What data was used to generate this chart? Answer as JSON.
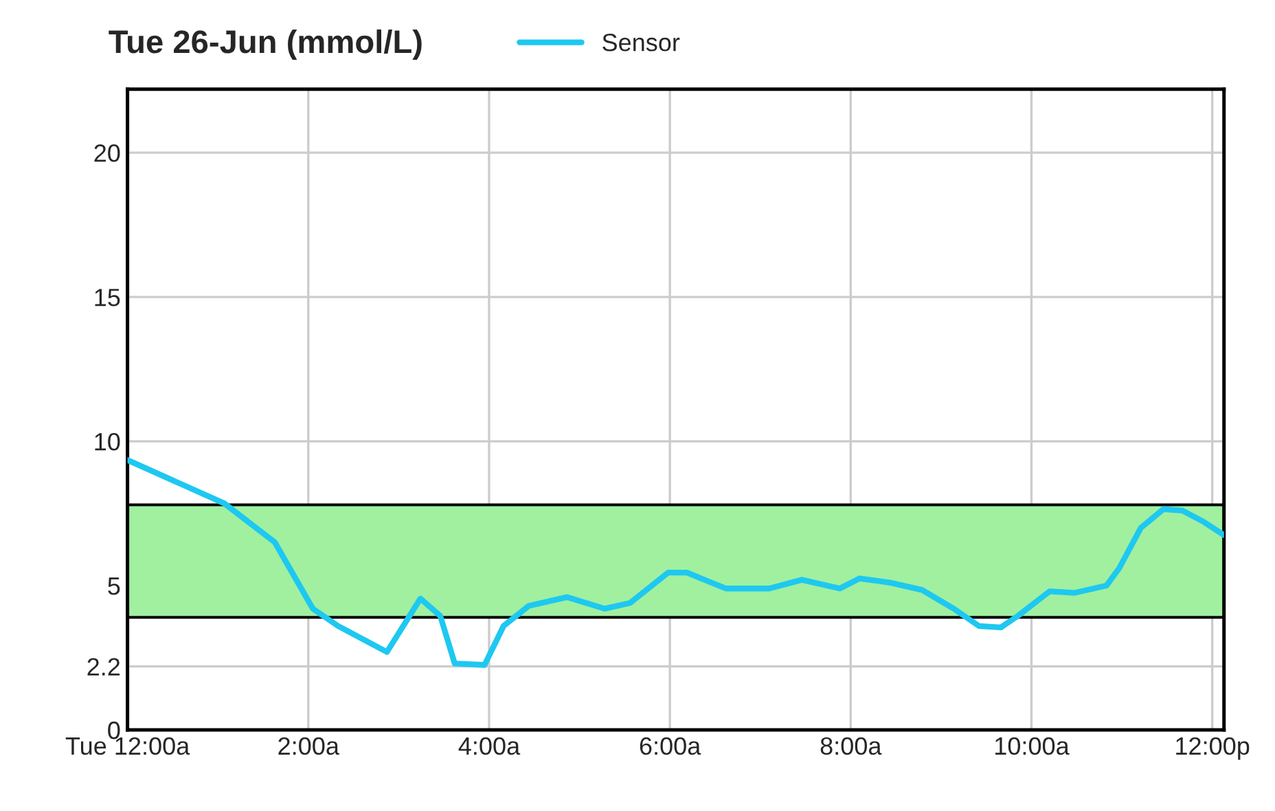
{
  "chart_data": {
    "type": "line",
    "title": "Tue 26-Jun (mmol/L)",
    "x": [
      0,
      1.07,
      1.63,
      2.05,
      2.33,
      2.87,
      3.24,
      3.46,
      3.62,
      3.95,
      4.16,
      4.44,
      4.86,
      5.28,
      5.56,
      5.98,
      6.19,
      6.62,
      7.1,
      7.46,
      7.88,
      8.1,
      8.44,
      8.79,
      9.14,
      9.42,
      9.66,
      9.85,
      10.2,
      10.48,
      10.83,
      10.97,
      11.21,
      11.46,
      11.67,
      11.91,
      12.13
    ],
    "series": [
      {
        "name": "Sensor",
        "color": "#1ec8f0",
        "values": [
          9.35,
          7.85,
          6.5,
          4.2,
          3.6,
          2.7,
          4.55,
          3.95,
          2.3,
          2.25,
          3.6,
          4.3,
          4.6,
          4.2,
          4.4,
          5.45,
          5.45,
          4.9,
          4.9,
          5.2,
          4.9,
          5.25,
          5.1,
          4.85,
          4.2,
          3.6,
          3.55,
          3.95,
          4.8,
          4.75,
          5.0,
          5.6,
          7.0,
          7.65,
          7.6,
          7.2,
          6.75
        ]
      }
    ],
    "xlim": [
      0,
      12.13
    ],
    "xticks": [
      {
        "value": 0,
        "label": "Tue 12:00a"
      },
      {
        "value": 2,
        "label": "2:00a"
      },
      {
        "value": 4,
        "label": "4:00a"
      },
      {
        "value": 6,
        "label": "6:00a"
      },
      {
        "value": 8,
        "label": "8:00a"
      },
      {
        "value": 10,
        "label": "10:00a"
      },
      {
        "value": 12,
        "label": "12:00p"
      }
    ],
    "ylim": [
      0,
      22.2
    ],
    "yticks": [
      0,
      2.2,
      5,
      10,
      15,
      20
    ],
    "bands": [
      {
        "axis": "y",
        "from": 3.9,
        "to": 7.8,
        "color": "#a0f0a0"
      }
    ],
    "grid": true,
    "legend": "top",
    "line_style": "solid",
    "marker": "none"
  }
}
